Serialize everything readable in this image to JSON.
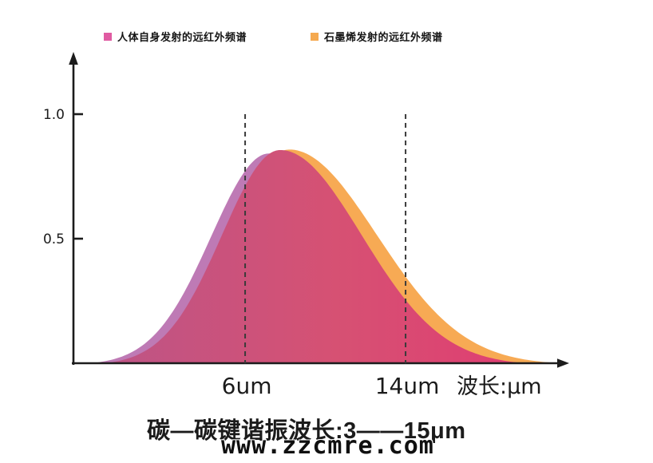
{
  "page": {
    "background": "#ffffff"
  },
  "legend": {
    "items": [
      {
        "label": "人体自身发射的远红外频谱",
        "color": "#E05BA2"
      },
      {
        "label": "石墨烯发射的远红外频谱",
        "color": "#F5A94F"
      }
    ]
  },
  "chart_data": {
    "type": "area",
    "title": "",
    "xlabel": "波长:μm",
    "ylabel": "",
    "grid": false,
    "legend_position": "top",
    "xlim": [
      -2.56,
      22.4
    ],
    "ylim": [
      0,
      1.23
    ],
    "x_ticks": [
      {
        "value": 6,
        "label": "6um"
      },
      {
        "value": 14,
        "label": "14um"
      }
    ],
    "y_ticks": [
      {
        "value": 1.0,
        "label": "1.0"
      },
      {
        "value": 0.5,
        "label": "0.5"
      }
    ],
    "marker_lines_x": [
      {
        "value": 6,
        "y_top": 1.0
      },
      {
        "value": 14,
        "y_top": 1.0
      }
    ],
    "series": [
      {
        "key": "human-body-spectrum",
        "name": "人体自身发射的远红外频谱",
        "fill": "#BE7AB5",
        "peak_x": 7.2,
        "peak_y": 0.85,
        "sigma_left": 2.9,
        "sigma_right": 4.0,
        "x_start": -1.7,
        "x_end": 19.5
      },
      {
        "key": "graphene-spectrum",
        "name": "石墨烯发射的远红外频谱",
        "fill": "#F7AA54",
        "peak_x": 8.2,
        "peak_y": 0.87,
        "sigma_left": 3.1,
        "sigma_right": 4.35,
        "x_start": -0.6,
        "x_end": 21.7
      },
      {
        "key": "spectra-overlap",
        "name": "overlap-region",
        "fill_gradient": [
          "#BD5486",
          "#D65173",
          "#E03D72"
        ],
        "peak_x": 7.75,
        "peak_y": 0.865,
        "sigma_left": 2.9,
        "sigma_right": 4.05,
        "x_start": -1.0,
        "x_end": 20.0
      }
    ]
  },
  "caption": {
    "text": "碳—碳键谐振波长:3——15μm"
  },
  "watermark": {
    "text": "www.zzcmre.com"
  }
}
